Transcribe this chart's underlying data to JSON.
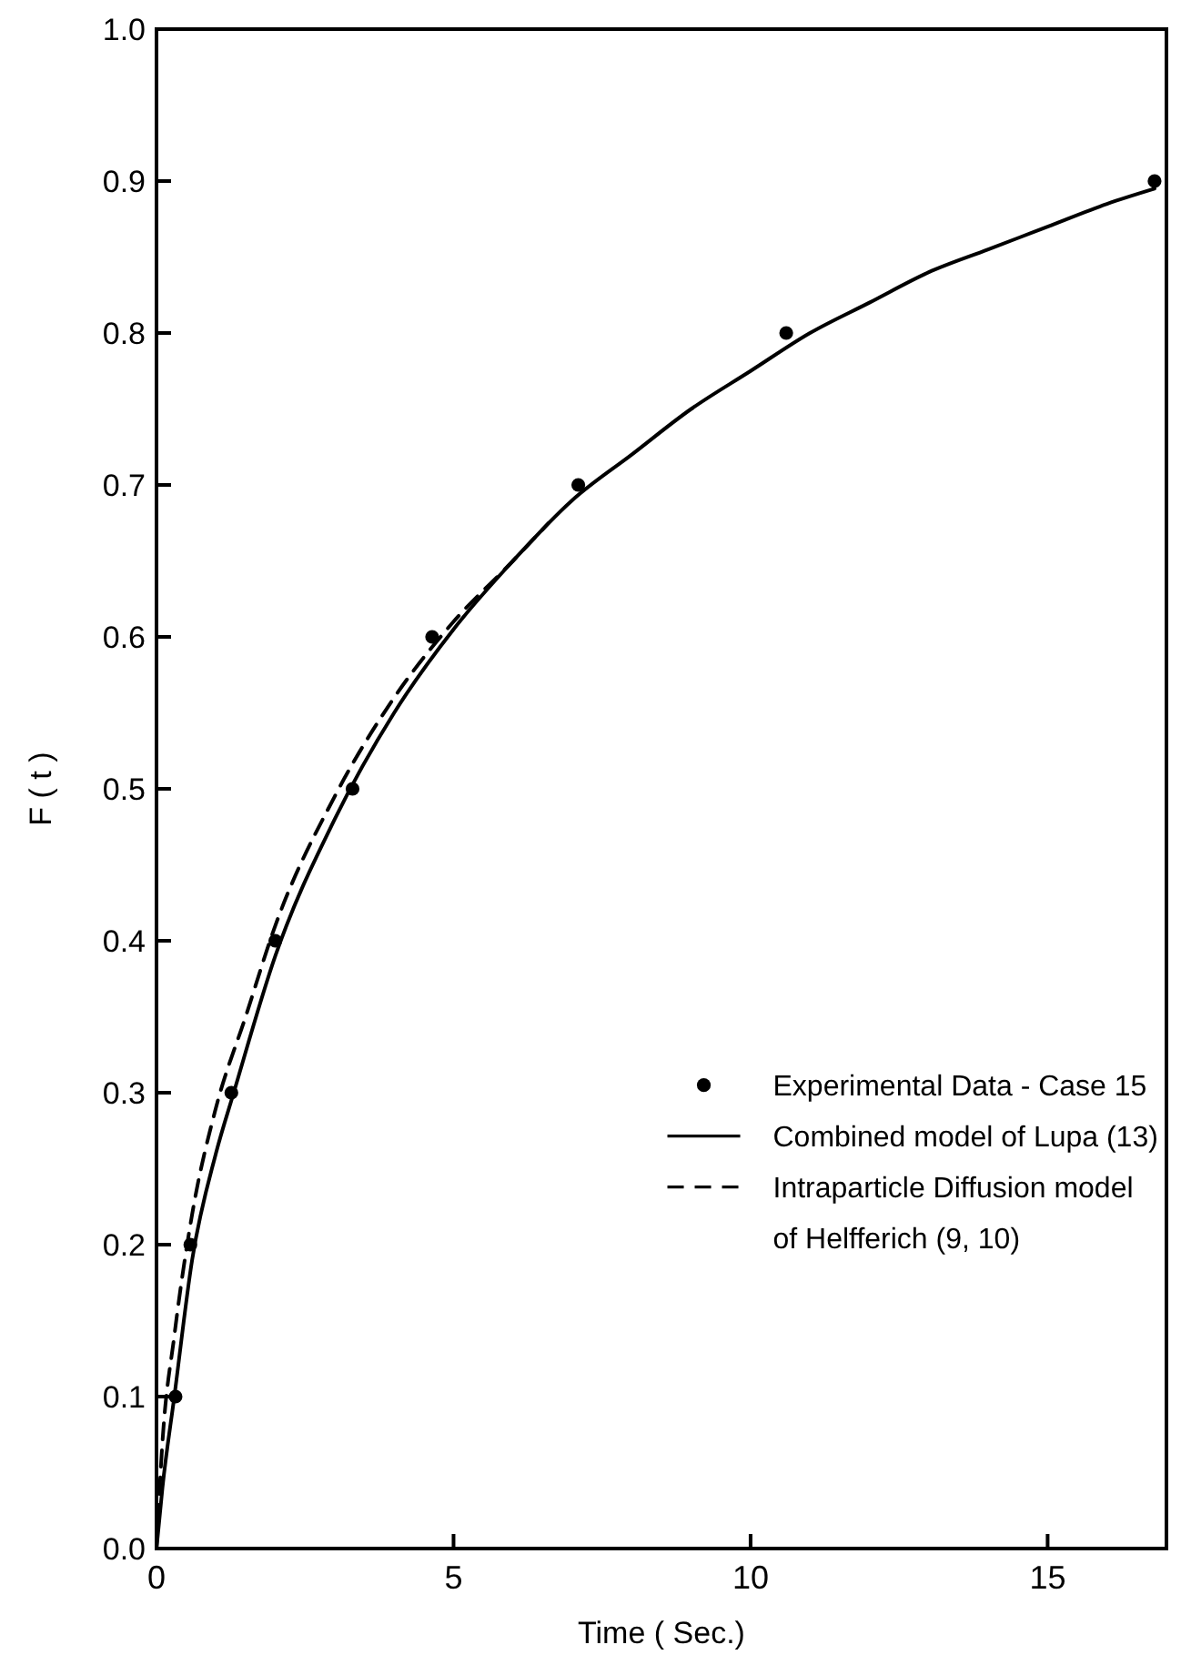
{
  "chart_data": {
    "type": "line",
    "xlabel": "Time ( Sec.)",
    "ylabel": "F ( t )",
    "xlim": [
      0,
      17
    ],
    "ylim": [
      0,
      1
    ],
    "xticks": [
      0,
      5,
      10,
      15
    ],
    "yticks": [
      {
        "value": 0,
        "label": "0.0"
      },
      0.1,
      0.2,
      0.3,
      0.4,
      0.5,
      0.6,
      0.7,
      0.8,
      0.9,
      {
        "value": 1,
        "label": "1.0"
      }
    ],
    "grid": false,
    "legend": "right",
    "series": [
      {
        "name": "Experimental Data - Case 15",
        "type": "scatter",
        "marker": "circle",
        "color": "#000000",
        "x": [
          0.32,
          0.57,
          1.26,
          2.0,
          3.3,
          4.64,
          7.1,
          10.6,
          16.8
        ],
        "values": [
          0.1,
          0.2,
          0.3,
          0.4,
          0.5,
          0.6,
          0.7,
          0.8,
          0.9
        ]
      },
      {
        "name": "Combined model of Lupa (13)",
        "line_style": "solid",
        "marker": "none",
        "color": "#000000",
        "x": [
          0,
          0.1,
          0.3,
          0.6,
          1,
          1.3,
          2,
          3,
          4,
          5,
          6,
          7,
          8,
          9,
          10,
          11,
          12,
          13,
          14,
          15,
          16,
          16.8
        ],
        "values": [
          0,
          0.04,
          0.1,
          0.19,
          0.26,
          0.3,
          0.39,
          0.48,
          0.55,
          0.605,
          0.65,
          0.69,
          0.72,
          0.75,
          0.775,
          0.8,
          0.82,
          0.84,
          0.855,
          0.87,
          0.885,
          0.895
        ]
      },
      {
        "name": "Intraparticle Diffusion model of Helfferich (9, 10)",
        "line_style": "dashed",
        "marker": "none",
        "color": "#000000",
        "x": [
          0,
          0.1,
          0.3,
          0.6,
          1,
          1.5,
          2,
          3,
          4,
          5,
          6,
          6.6
        ],
        "values": [
          0,
          0.07,
          0.14,
          0.22,
          0.29,
          0.35,
          0.41,
          0.495,
          0.56,
          0.61,
          0.65,
          0.675
        ]
      }
    ]
  }
}
